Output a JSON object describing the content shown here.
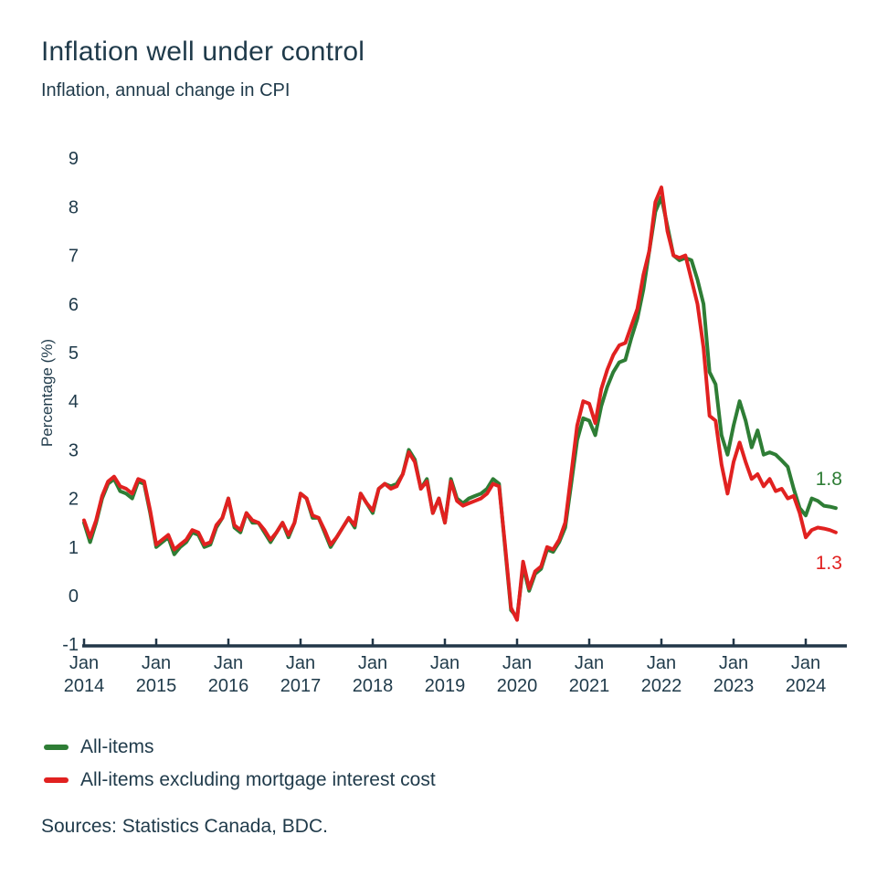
{
  "title": "Inflation well under control",
  "subtitle": "Inflation, annual change in CPI",
  "sources": "Sources: Statistics Canada, BDC.",
  "colors": {
    "all_items": "#2e7d35",
    "all_items_ex_mortgage": "#e12120",
    "text": "#1f3a4a",
    "axis": "#223748"
  },
  "legend": {
    "items": [
      {
        "label": "All-items",
        "color": "#2e7d35"
      },
      {
        "label": "All-items excluding mortgage interest cost",
        "color": "#e12120"
      }
    ]
  },
  "chart_data": {
    "type": "line",
    "title": "Inflation well under control",
    "subtitle": "Inflation, annual change in CPI",
    "ylabel": "Percentage (%)",
    "xlabel": "",
    "ylim": [
      -1,
      9
    ],
    "grid": false,
    "legend_position": "bottom-left",
    "y_ticks": [
      9,
      8,
      7,
      6,
      5,
      4,
      3,
      2,
      1,
      0,
      -1
    ],
    "x_tick_labels": [
      "Jan 2014",
      "Jan 2015",
      "Jan 2016",
      "Jan 2017",
      "Jan 2018",
      "Jan 2019",
      "Jan 2020",
      "Jan 2021",
      "Jan 2022",
      "Jan 2023",
      "Jan 2024"
    ],
    "x_start": "Jan 2014",
    "x_step": "1 month",
    "series": [
      {
        "name": "All-items",
        "color": "#2e7d35",
        "end_label": "1.8",
        "values": [
          1.5,
          1.1,
          1.5,
          2.0,
          2.3,
          2.4,
          2.15,
          2.1,
          2.0,
          2.35,
          2.3,
          1.7,
          1.0,
          1.1,
          1.2,
          0.85,
          1.0,
          1.1,
          1.3,
          1.25,
          1.0,
          1.05,
          1.4,
          1.6,
          2.0,
          1.4,
          1.3,
          1.7,
          1.5,
          1.5,
          1.3,
          1.1,
          1.3,
          1.5,
          1.2,
          1.5,
          2.1,
          2.0,
          1.6,
          1.6,
          1.3,
          1.0,
          1.2,
          1.4,
          1.6,
          1.4,
          2.1,
          1.9,
          1.7,
          2.2,
          2.3,
          2.25,
          2.3,
          2.5,
          3.0,
          2.8,
          2.2,
          2.4,
          1.7,
          2.0,
          1.5,
          2.4,
          2.0,
          1.9,
          2.0,
          2.05,
          2.1,
          2.2,
          2.4,
          2.3,
          1.0,
          -0.3,
          -0.45,
          0.6,
          0.1,
          0.45,
          0.55,
          0.95,
          0.9,
          1.1,
          1.4,
          2.3,
          3.2,
          3.65,
          3.6,
          3.3,
          3.9,
          4.3,
          4.6,
          4.8,
          4.85,
          5.3,
          5.7,
          6.3,
          7.1,
          7.9,
          8.2,
          7.6,
          7.0,
          6.9,
          6.95,
          6.9,
          6.5,
          6.0,
          4.6,
          4.35,
          3.3,
          2.9,
          3.5,
          4.0,
          3.6,
          3.05,
          3.4,
          2.9,
          2.95,
          2.9,
          2.78,
          2.65,
          2.2,
          1.8,
          1.65,
          2.0,
          1.95,
          1.85,
          1.83,
          1.8
        ]
      },
      {
        "name": "All-items excluding mortgage interest cost",
        "color": "#e12120",
        "end_label": "1.3",
        "values": [
          1.55,
          1.2,
          1.55,
          2.05,
          2.35,
          2.45,
          2.25,
          2.2,
          2.1,
          2.4,
          2.35,
          1.75,
          1.05,
          1.15,
          1.25,
          0.95,
          1.05,
          1.15,
          1.35,
          1.3,
          1.05,
          1.1,
          1.45,
          1.6,
          2.0,
          1.45,
          1.35,
          1.7,
          1.55,
          1.5,
          1.35,
          1.15,
          1.3,
          1.5,
          1.25,
          1.5,
          2.1,
          2.0,
          1.65,
          1.6,
          1.35,
          1.05,
          1.2,
          1.4,
          1.6,
          1.45,
          2.1,
          1.9,
          1.75,
          2.2,
          2.3,
          2.2,
          2.25,
          2.5,
          2.95,
          2.75,
          2.2,
          2.35,
          1.7,
          2.0,
          1.5,
          2.35,
          1.95,
          1.85,
          1.9,
          1.95,
          2.0,
          2.1,
          2.3,
          2.25,
          1.05,
          -0.25,
          -0.5,
          0.7,
          0.15,
          0.5,
          0.6,
          1.0,
          0.95,
          1.15,
          1.5,
          2.5,
          3.5,
          4.0,
          3.95,
          3.55,
          4.25,
          4.65,
          4.95,
          5.15,
          5.2,
          5.55,
          5.9,
          6.6,
          7.1,
          8.1,
          8.4,
          7.5,
          7.0,
          6.95,
          7.0,
          6.5,
          6.0,
          5.1,
          3.7,
          3.6,
          2.7,
          2.1,
          2.75,
          3.15,
          2.75,
          2.4,
          2.5,
          2.25,
          2.4,
          2.15,
          2.2,
          2.0,
          2.05,
          1.7,
          1.2,
          1.35,
          1.4,
          1.38,
          1.35,
          1.3
        ]
      }
    ]
  }
}
